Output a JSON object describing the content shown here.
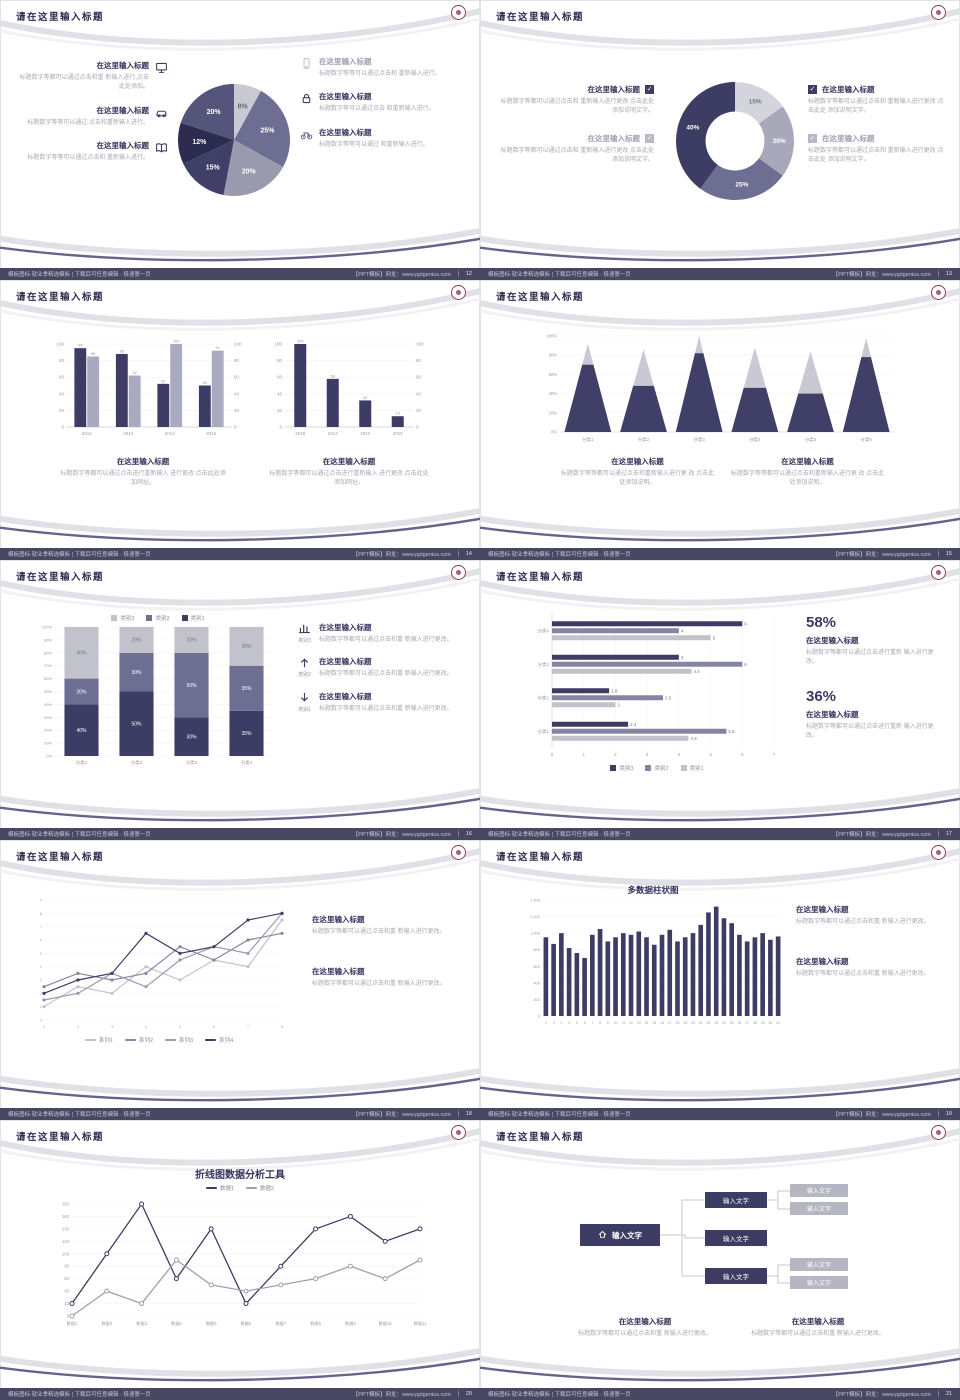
{
  "app": {
    "background": "#e7e7ea",
    "accent_navy": "#3c3c64",
    "accent_slate": "#6e6e93",
    "accent_light": "#c2c2cd",
    "footer_bar": "#474762",
    "logo_color": "#8d3a50"
  },
  "common": {
    "slide_title": "请在这里输入标题",
    "block_title": "在这里输入标题",
    "footer_left": "模板图标:就业季精选模板 | 下载后可任意编辑 · 极速第一页",
    "footer_right": "【PPT模板】网址：www.pptgenius.com"
  },
  "slides": [
    {
      "num": "12",
      "chart_data": {
        "type": "pie",
        "values": [
          8,
          25,
          20,
          15,
          12,
          20
        ],
        "labels": [
          "8%",
          "25%",
          "20%",
          "15%",
          "12%",
          "20%"
        ],
        "colors": [
          "#c9c9d3",
          "#6e6e93",
          "#9a9aae",
          "#3f3f68",
          "#2c2c50",
          "#55557c"
        ]
      },
      "icons_left": [
        "monitor-icon",
        "car-icon",
        "book-icon"
      ],
      "icons_right": [
        "smartphone-icon",
        "lock-icon",
        "bicycle-icon"
      ],
      "items_left": [
        {
          "title": "在这里输入标题",
          "text": "标题数字等都可以通过点击和重 新输入进行,点击此处添加。"
        },
        {
          "title": "在这里输入标题",
          "text": "标题数字等等可以通过 点击和重新输入进行。"
        },
        {
          "title": "在这里输入标题",
          "text": "标题数字等等可以通过点击和 重新输入进行。"
        }
      ],
      "items_right": [
        {
          "title": "在这里输入标题",
          "text": "标题数字等等可以通过点击和 重新输入进行。"
        },
        {
          "title": "在这里输入标题",
          "text": "标题数字等可以通过点击 和重新输入进行。"
        },
        {
          "title": "在这里输入标题",
          "text": "标题数字等等可以通过 和重新输入进行。"
        }
      ]
    },
    {
      "num": "13",
      "chart_data": {
        "type": "donut",
        "values": [
          15,
          20,
          25,
          40
        ],
        "labels": [
          "15%",
          "20%",
          "25%",
          "40%"
        ],
        "colors": [
          "#d4d4dc",
          "#a8a8ba",
          "#6e6e93",
          "#3c3c64"
        ]
      },
      "item_text": "标题数字等都可以通过点击和 重新输入进行更改 点击此处 添加说明文字。",
      "items_left": [
        {
          "title": "在这里输入标题"
        },
        {
          "title": "在这里输入标题"
        }
      ],
      "items_right": [
        {
          "title": "在这里输入标题"
        },
        {
          "title": "在这里输入标题"
        }
      ],
      "check_colors": [
        "#3c3c64",
        "#b9b9c6"
      ]
    },
    {
      "num": "14",
      "chart_data": [
        {
          "type": "bars",
          "categories": [
            "2010",
            "2012",
            "2014",
            "2016"
          ],
          "ymax": 100,
          "yticks": [
            0,
            20,
            40,
            60,
            80,
            100
          ],
          "dual": true,
          "value_labels": true,
          "series": [
            {
              "name": "系列1",
              "color": "#3c3c64",
              "values": [
                95,
                88,
                52,
                50
              ]
            },
            {
              "name": "系列2",
              "color": "#a9a9c0",
              "values": [
                85,
                62,
                100,
                92
              ]
            }
          ]
        },
        {
          "type": "bars",
          "categories": [
            "2016",
            "2014",
            "2012",
            "2010"
          ],
          "ymax": 100,
          "yticks": [
            0,
            20,
            40,
            60,
            80,
            100
          ],
          "dual": true,
          "value_labels": true,
          "series": [
            {
              "name": "系列1",
              "color": "#3c3c64",
              "values": [
                100,
                58,
                32,
                13
              ]
            }
          ]
        }
      ],
      "blocks": [
        {
          "title": "在这里输入标题",
          "text": "标题数字等都可以通过点击进行重新输入 进行更改 点击此处添加网址。"
        },
        {
          "title": "在这里输入标题",
          "text": "标题数字等都可以通过点击进行重新输入 进行更改 点击此处添加网址。"
        }
      ]
    },
    {
      "num": "15",
      "chart_data": {
        "type": "cones",
        "categories": [
          "分类1",
          "分类2",
          "分类3",
          "分类4",
          "分类5",
          "分类6"
        ],
        "total": [
          92,
          86,
          100,
          88,
          84,
          98
        ],
        "dark": [
          70,
          48,
          82,
          46,
          40,
          78
        ],
        "dark_color": "#3f3f68",
        "light_color": "#c9c9d3",
        "yticks": [
          "100%",
          "80%",
          "60%",
          "40%",
          "20%",
          "0%"
        ]
      },
      "blocks": [
        {
          "title": "在这里输入标题",
          "text": "标题数字等等都可以通过点击和重新输入进行更 改 点击此处添加说明。"
        },
        {
          "title": "在这里输入标题",
          "text": "标题数字等等都可以通过点击和重新输入进行更 改 点击此处添加说明。"
        }
      ]
    },
    {
      "num": "16",
      "chart_data": {
        "type": "stacked",
        "categories": [
          "分类1",
          "分类2",
          "分类3",
          "分类4"
        ],
        "series": [
          {
            "name": "类别1",
            "color": "#3c3c64",
            "values": [
              40,
              50,
              30,
              35
            ]
          },
          {
            "name": "类别2",
            "color": "#6e6e93",
            "values": [
              20,
              30,
              50,
              35
            ]
          },
          {
            "name": "类别3",
            "color": "#c2c2cd",
            "values": [
              40,
              20,
              20,
              30
            ]
          }
        ],
        "yticks": [
          "100%",
          "90%",
          "80%",
          "70%",
          "60%",
          "50%",
          "40%",
          "30%",
          "20%",
          "10%",
          "0%"
        ],
        "legend_order": [
          "类别3",
          "类别2",
          "类别1"
        ]
      },
      "items": [
        {
          "label": "类别3",
          "icon": "bar-chart-icon",
          "title": "在这里输入标题",
          "text": "标题数字等都可以通过点击和重 新输入进行更改。"
        },
        {
          "label": "类别2",
          "icon": "arrow-up-icon",
          "title": "在这里输入标题",
          "text": "标题数字等都可以通过点击和重 新输入进行更改。"
        },
        {
          "label": "类别1",
          "icon": "arrow-down-icon",
          "title": "在这里输入标题",
          "text": "标题数字等都可以通过点击和重 新输入进行更改。"
        }
      ]
    },
    {
      "num": "17",
      "chart_data": {
        "type": "hbars",
        "groups": [
          {
            "label": "分类4",
            "values": [
              6,
              4,
              5
            ]
          },
          {
            "label": "分类3",
            "values": [
              4,
              6,
              4.4
            ]
          },
          {
            "label": "分类2",
            "values": [
              1.8,
              3.5,
              2
            ]
          },
          {
            "label": "分类1",
            "values": [
              2.4,
              5.5,
              4.3
            ]
          }
        ],
        "colors": [
          "#3c3c64",
          "#8585a3",
          "#c2c2cd"
        ],
        "xticks": [
          0,
          1,
          2,
          3,
          4,
          5,
          6,
          7
        ],
        "legend": [
          "类别3",
          "类别2",
          "类别1"
        ]
      },
      "stats": [
        {
          "value": "58%",
          "title": "在这里输入标题",
          "text": "标题数字等都可以通过点击进行重新 输入进行更改。"
        },
        {
          "value": "36%",
          "title": "在这里输入标题",
          "text": "标题数字等都可以通过点击进行重新 输入进行更改。"
        }
      ]
    },
    {
      "num": "18",
      "chart_data": {
        "type": "lines",
        "x": [
          1,
          2,
          3,
          4,
          5,
          6,
          7,
          8
        ],
        "ymax": 9,
        "series": [
          {
            "name": "系列1",
            "color": "#c2c2cd",
            "values": [
              1,
              2.5,
              2,
              4,
              3,
              4.5,
              4,
              7.5
            ]
          },
          {
            "name": "系列2",
            "color": "#8585a3",
            "values": [
              2.5,
              3.5,
              3,
              3.5,
              5.5,
              4.5,
              6,
              6.5
            ]
          },
          {
            "name": "系列3",
            "color": "#9a9aae",
            "values": [
              1.5,
              2,
              3.5,
              2.5,
              4.5,
              5.5,
              5,
              8
            ]
          },
          {
            "name": "系列4",
            "color": "#3c3c64",
            "values": [
              2,
              3,
              3.5,
              6.5,
              5,
              5.5,
              7.5,
              8
            ]
          }
        ]
      },
      "blocks": [
        {
          "title": "在这里输入标题",
          "text": "标题数字等都可以通过点击和重 新输入进行更改。"
        },
        {
          "title": "在这里输入标题",
          "text": "标题数字等都可以通过点击和重 新输入进行更改。"
        }
      ]
    },
    {
      "num": "19",
      "chart_title": "多数据柱状图",
      "chart_data": {
        "type": "columns",
        "color": "#3c3c64",
        "ymax": 1400,
        "yticks": [
          "1,400",
          "1,200",
          "1,000",
          "800",
          "600",
          "400",
          "200",
          "0"
        ],
        "values": [
          950,
          870,
          1000,
          820,
          760,
          700,
          980,
          1050,
          900,
          950,
          1000,
          980,
          1020,
          950,
          860,
          980,
          1040,
          900,
          950,
          1000,
          1100,
          1250,
          1320,
          1180,
          1120,
          980,
          900,
          950,
          1000,
          920,
          960
        ]
      },
      "blocks": [
        {
          "title": "在这里输入标题",
          "text": "标题数字等都可以通过点击和重 新输入进行更改。"
        },
        {
          "title": "在这里输入标题",
          "text": "标题数字等都可以通过点击和重 新输入进行更改。"
        }
      ]
    },
    {
      "num": "20",
      "chart_title": "折线图数据分析工具",
      "chart_data": {
        "type": "lines2",
        "ymin": 3,
        "ymax": 183,
        "xlabels": [
          "数据1",
          "数据2",
          "数据3",
          "数据4",
          "数据5",
          "数据6",
          "数据7",
          "数据8",
          "数据9",
          "数据10",
          "数据11"
        ],
        "yticks": [
          "183",
          "163",
          "143",
          "123",
          "103",
          "83",
          "63",
          "43",
          "23",
          "3"
        ],
        "series": [
          {
            "name": "数据1",
            "color": "#3c3c64",
            "values": [
              23,
              103,
              183,
              63,
              143,
              23,
              83,
              143,
              163,
              123,
              143
            ]
          },
          {
            "name": "数据2",
            "color": "#a0a0b0",
            "values": [
              3,
              43,
              23,
              93,
              53,
              43,
              53,
              63,
              83,
              63,
              93
            ]
          }
        ]
      }
    },
    {
      "num": "21",
      "flow": {
        "main": "输入文字",
        "mid": [
          "输入文字",
          "输入文字",
          "输入文字"
        ],
        "right": [
          "输入文字",
          "输入文字",
          "输入文字",
          "输入文字"
        ]
      },
      "blocks": [
        {
          "title": "在这里输入标题",
          "text": "标题数字等都可以通过点击和重 新输入进行更改。"
        },
        {
          "title": "在这里输入标题",
          "text": "标题数字等都可以通过点击和重 新输入进行更改。"
        }
      ]
    }
  ]
}
